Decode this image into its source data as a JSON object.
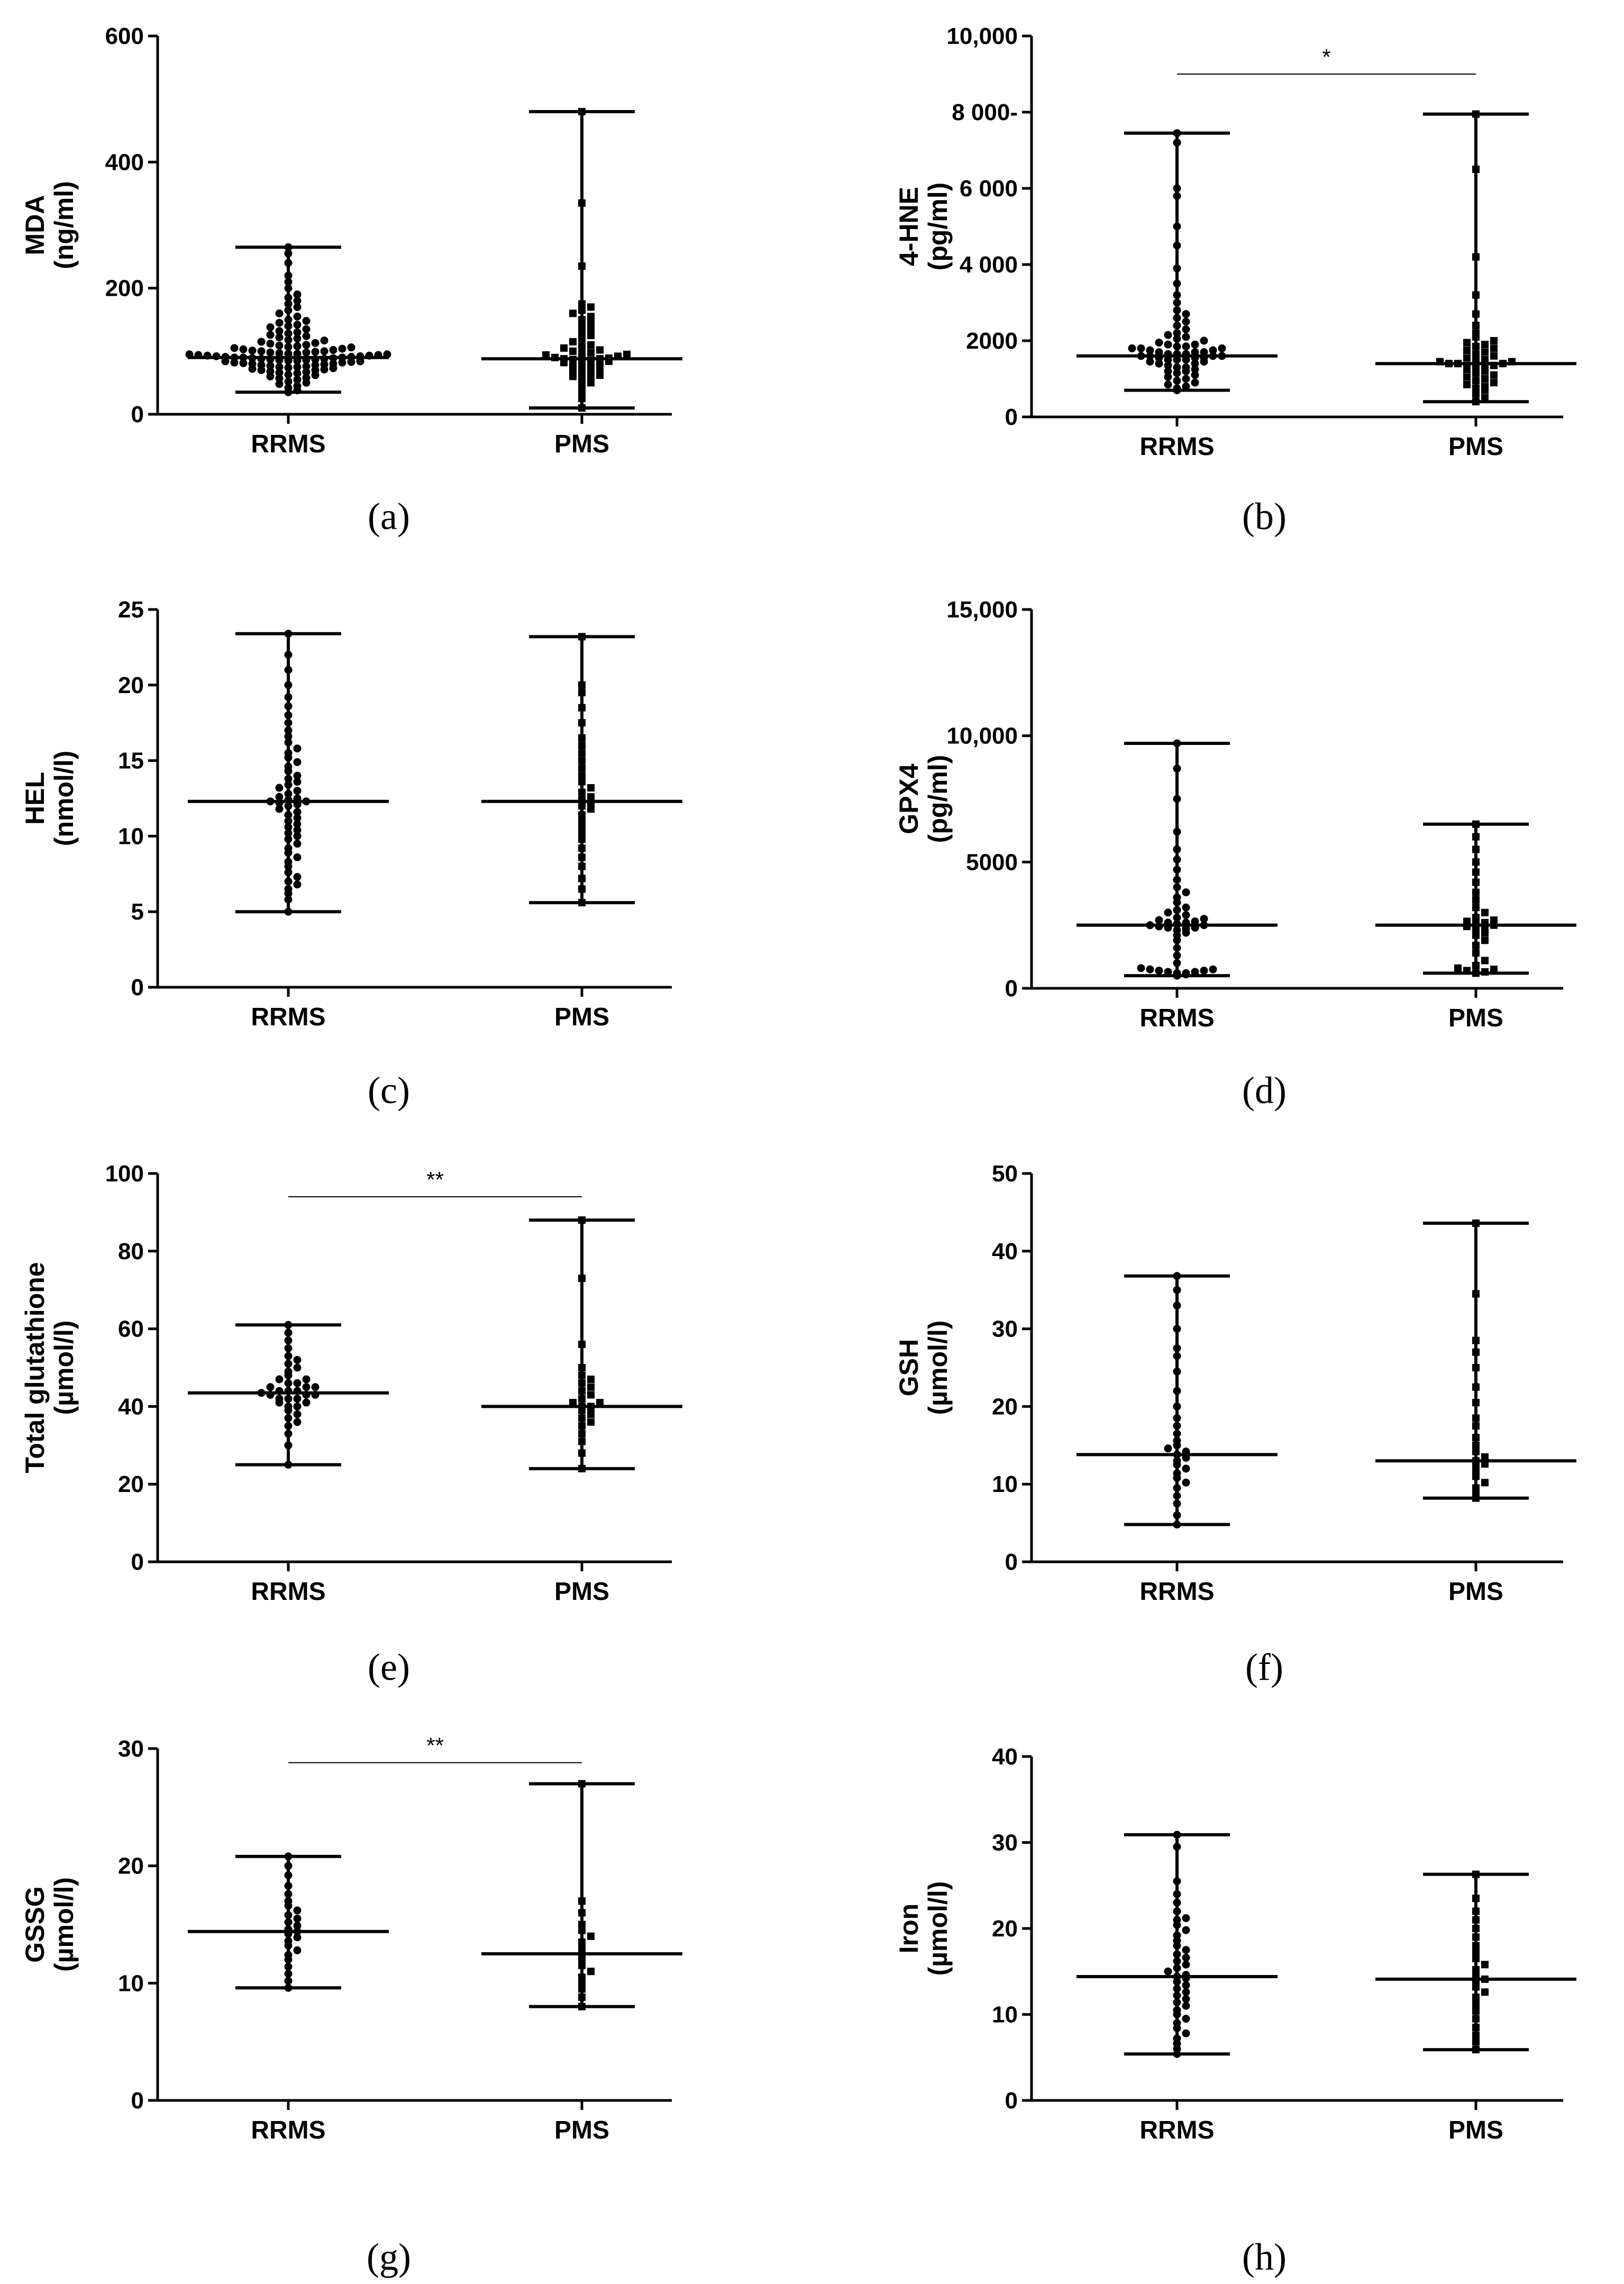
{
  "figure": {
    "ink_color": "#000000",
    "background": "#ffffff"
  },
  "chart_data": [
    {
      "id": "a",
      "type": "scatter",
      "subtype": "dot-plot with median and range",
      "panel_label": "(a)",
      "title": "",
      "ylabel_line1": "MDA",
      "ylabel_line2": "(ng/ml)",
      "ylim": [
        0,
        600
      ],
      "yticks": [
        0,
        200,
        400,
        600
      ],
      "ytick_labels": [
        "0",
        "200",
        "400",
        "600"
      ],
      "categories": [
        "RRMS",
        "PMS"
      ],
      "series": [
        {
          "name": "RRMS",
          "marker": "circle",
          "median": 90,
          "min": 35,
          "max": 265,
          "values": [
            35,
            38,
            42,
            45,
            48,
            50,
            52,
            55,
            57,
            58,
            60,
            62,
            63,
            65,
            66,
            67,
            68,
            70,
            70,
            71,
            72,
            73,
            74,
            75,
            75,
            76,
            77,
            78,
            78,
            79,
            80,
            80,
            81,
            82,
            82,
            83,
            84,
            84,
            85,
            85,
            86,
            86,
            87,
            87,
            88,
            88,
            89,
            89,
            90,
            90,
            90,
            91,
            91,
            92,
            92,
            93,
            93,
            94,
            94,
            95,
            95,
            96,
            96,
            97,
            98,
            98,
            99,
            100,
            100,
            101,
            102,
            103,
            104,
            105,
            106,
            107,
            108,
            109,
            110,
            112,
            113,
            115,
            117,
            118,
            120,
            122,
            124,
            126,
            128,
            130,
            132,
            135,
            138,
            140,
            142,
            145,
            148,
            150,
            155,
            160,
            165,
            170,
            175,
            180,
            185,
            190,
            200,
            210,
            220,
            240,
            255,
            265
          ]
        },
        {
          "name": "PMS",
          "marker": "square",
          "median": 88,
          "min": 10,
          "max": 480,
          "values": [
            10,
            25,
            35,
            45,
            50,
            55,
            58,
            60,
            62,
            65,
            68,
            70,
            72,
            75,
            77,
            78,
            80,
            82,
            84,
            85,
            86,
            87,
            88,
            88,
            89,
            90,
            92,
            94,
            95,
            96,
            98,
            100,
            102,
            105,
            108,
            110,
            115,
            120,
            125,
            130,
            135,
            140,
            145,
            150,
            155,
            160,
            165,
            170,
            175,
            235,
            335,
            480
          ]
        }
      ],
      "significance": null
    },
    {
      "id": "b",
      "type": "scatter",
      "subtype": "dot-plot with median and range",
      "panel_label": "(b)",
      "title": "",
      "ylabel_line1": "4-HNE",
      "ylabel_line2": "(pg/ml)",
      "ylim": [
        0,
        10000
      ],
      "yticks": [
        0,
        2000,
        4000,
        6000,
        8000,
        10000
      ],
      "ytick_labels": [
        "0",
        "2000",
        "4 000",
        "6 000",
        "8 000-",
        "10,000"
      ],
      "categories": [
        "RRMS",
        "PMS"
      ],
      "series": [
        {
          "name": "RRMS",
          "marker": "circle",
          "median": 1600,
          "min": 700,
          "max": 7450,
          "values": [
            700,
            750,
            800,
            850,
            900,
            950,
            1000,
            1050,
            1100,
            1150,
            1200,
            1200,
            1250,
            1300,
            1300,
            1350,
            1400,
            1400,
            1450,
            1450,
            1500,
            1500,
            1500,
            1550,
            1550,
            1550,
            1600,
            1600,
            1600,
            1600,
            1650,
            1650,
            1650,
            1700,
            1700,
            1700,
            1750,
            1750,
            1800,
            1800,
            1800,
            1850,
            1850,
            1900,
            1900,
            1950,
            2000,
            2050,
            2100,
            2150,
            2200,
            2300,
            2400,
            2500,
            2600,
            2700,
            2800,
            3000,
            3200,
            3500,
            3900,
            4500,
            5000,
            5800,
            6000,
            7200,
            7450
          ]
        },
        {
          "name": "PMS",
          "marker": "square",
          "median": 1400,
          "min": 400,
          "max": 7950,
          "values": [
            400,
            500,
            600,
            700,
            750,
            800,
            850,
            900,
            950,
            1000,
            1050,
            1100,
            1150,
            1200,
            1250,
            1300,
            1300,
            1350,
            1350,
            1400,
            1400,
            1400,
            1450,
            1450,
            1500,
            1500,
            1550,
            1600,
            1650,
            1700,
            1750,
            1800,
            1850,
            1900,
            1950,
            2000,
            2100,
            2200,
            2400,
            2700,
            3200,
            4200,
            6500,
            7950
          ]
        }
      ],
      "significance": {
        "label": "*",
        "from": "RRMS",
        "to": "PMS",
        "y": 9000
      }
    },
    {
      "id": "c",
      "type": "scatter",
      "subtype": "dot-plot with median and range",
      "panel_label": "(c)",
      "title": "",
      "ylabel_line1": "HEL",
      "ylabel_line2": "(nmol/l)",
      "ylim": [
        0,
        25
      ],
      "yticks": [
        0,
        5,
        10,
        15,
        20,
        25
      ],
      "ytick_labels": [
        "0",
        "5",
        "10",
        "15",
        "20",
        "25"
      ],
      "categories": [
        "RRMS",
        "PMS"
      ],
      "series": [
        {
          "name": "RRMS",
          "marker": "circle",
          "median": 12.3,
          "min": 5.0,
          "max": 23.4,
          "values": [
            5.0,
            5.8,
            6.2,
            6.5,
            6.8,
            7.0,
            7.3,
            7.6,
            8.0,
            8.3,
            8.6,
            8.9,
            9.2,
            9.5,
            9.8,
            10.0,
            10.2,
            10.4,
            10.6,
            10.8,
            11.0,
            11.2,
            11.4,
            11.6,
            11.8,
            12.0,
            12.1,
            12.2,
            12.3,
            12.3,
            12.4,
            12.5,
            12.6,
            12.8,
            13.0,
            13.2,
            13.4,
            13.6,
            13.8,
            14.0,
            14.3,
            14.6,
            14.9,
            15.2,
            15.5,
            15.8,
            16.2,
            16.6,
            17.0,
            17.5,
            18.0,
            18.6,
            19.2,
            20.0,
            21.0,
            22.0,
            23.4
          ]
        },
        {
          "name": "PMS",
          "marker": "square",
          "median": 12.3,
          "min": 5.6,
          "max": 23.2,
          "values": [
            5.6,
            6.5,
            7.2,
            8.0,
            8.6,
            9.2,
            9.8,
            10.2,
            10.6,
            11.0,
            11.4,
            11.8,
            12.0,
            12.2,
            12.4,
            12.6,
            12.9,
            13.2,
            13.6,
            14.0,
            14.5,
            15.0,
            15.5,
            16.0,
            16.5,
            17.5,
            18.5,
            19.5,
            20.0,
            23.2
          ]
        }
      ],
      "significance": null
    },
    {
      "id": "d",
      "type": "scatter",
      "subtype": "dot-plot with median and range",
      "panel_label": "(d)",
      "title": "",
      "ylabel_line1": "GPX4",
      "ylabel_line2": "(pg/ml)",
      "ylim": [
        0,
        15000
      ],
      "yticks": [
        0,
        5000,
        10000,
        15000
      ],
      "ytick_labels": [
        "0",
        "5000",
        "10,000",
        "15,000"
      ],
      "categories": [
        "RRMS",
        "PMS"
      ],
      "series": [
        {
          "name": "RRMS",
          "marker": "circle",
          "median": 2500,
          "min": 500,
          "max": 9700,
          "values": [
            500,
            550,
            600,
            600,
            650,
            650,
            700,
            700,
            750,
            750,
            800,
            1000,
            1300,
            1600,
            1900,
            2100,
            2200,
            2300,
            2350,
            2400,
            2400,
            2450,
            2500,
            2500,
            2550,
            2600,
            2600,
            2650,
            2700,
            2750,
            2800,
            2900,
            3000,
            3100,
            3200,
            3400,
            3600,
            3800,
            4000,
            4300,
            4700,
            5100,
            5500,
            6200,
            7500,
            8700,
            9700
          ]
        },
        {
          "name": "PMS",
          "marker": "square",
          "median": 2500,
          "min": 600,
          "max": 6500,
          "values": [
            600,
            650,
            700,
            750,
            800,
            900,
            1100,
            1400,
            1700,
            1900,
            2100,
            2200,
            2300,
            2400,
            2450,
            2500,
            2550,
            2600,
            2650,
            2700,
            2800,
            3000,
            3200,
            3500,
            3800,
            4200,
            4600,
            5000,
            5500,
            6000,
            6500
          ]
        }
      ],
      "significance": null
    },
    {
      "id": "e",
      "type": "scatter",
      "subtype": "dot-plot with median and range",
      "panel_label": "(e)",
      "title": "",
      "ylabel_line1": "Total glutathione",
      "ylabel_line2": "(µmol/l)",
      "ylim": [
        0,
        100
      ],
      "yticks": [
        0,
        20,
        40,
        60,
        80,
        100
      ],
      "ytick_labels": [
        "0",
        "20",
        "40",
        "60",
        "80",
        "100"
      ],
      "categories": [
        "RRMS",
        "PMS"
      ],
      "series": [
        {
          "name": "RRMS",
          "marker": "circle",
          "median": 43.5,
          "min": 25,
          "max": 61,
          "values": [
            25,
            30,
            33,
            35,
            36,
            37,
            38,
            39,
            40,
            40,
            41,
            41,
            42,
            42,
            42,
            43,
            43,
            43,
            43.5,
            44,
            44,
            44,
            45,
            45,
            45,
            46,
            46,
            47,
            47,
            48,
            49,
            50,
            51,
            52,
            53,
            55,
            57,
            59,
            61
          ]
        },
        {
          "name": "PMS",
          "marker": "square",
          "median": 40,
          "min": 24,
          "max": 88,
          "values": [
            24,
            28,
            31,
            33,
            35,
            36,
            37,
            38,
            39,
            39,
            40,
            40,
            41,
            41,
            42,
            43,
            44,
            45,
            46,
            47,
            48,
            50,
            56,
            73,
            88
          ]
        }
      ],
      "significance": {
        "label": "**",
        "from": "RRMS",
        "to": "PMS",
        "y": 94
      }
    },
    {
      "id": "f",
      "type": "scatter",
      "subtype": "dot-plot with median and range",
      "panel_label": "(f)",
      "title": "",
      "ylabel_line1": "GSH",
      "ylabel_line2": "(µmol/l)",
      "ylim": [
        0,
        50
      ],
      "yticks": [
        0,
        10,
        20,
        30,
        40,
        50
      ],
      "ytick_labels": [
        "0",
        "10",
        "20",
        "30",
        "40",
        "50"
      ],
      "categories": [
        "RRMS",
        "PMS"
      ],
      "series": [
        {
          "name": "RRMS",
          "marker": "circle",
          "median": 13.8,
          "min": 4.8,
          "max": 36.8,
          "values": [
            4.8,
            6.0,
            7.5,
            8.5,
            9.5,
            10.2,
            10.8,
            11.4,
            12.0,
            12.5,
            13.0,
            13.4,
            13.8,
            14.2,
            14.6,
            15.0,
            15.6,
            16.5,
            17.5,
            18.5,
            20.0,
            22.0,
            24.5,
            26.5,
            27.5,
            30.0,
            33.0,
            35.0,
            36.8
          ]
        },
        {
          "name": "PMS",
          "marker": "square",
          "median": 13.0,
          "min": 8.2,
          "max": 43.6,
          "values": [
            8.2,
            8.8,
            9.5,
            10.2,
            11.0,
            11.6,
            12.2,
            12.6,
            13.0,
            13.5,
            14.2,
            15.0,
            16.0,
            17.5,
            18.5,
            20.5,
            22.5,
            25.0,
            27.0,
            28.5,
            34.5,
            43.6
          ]
        }
      ],
      "significance": null
    },
    {
      "id": "g",
      "type": "scatter",
      "subtype": "dot-plot with median and range",
      "panel_label": "(g)",
      "title": "",
      "ylabel_line1": "GSSG",
      "ylabel_line2": "(µmol/l)",
      "ylim": [
        0,
        30
      ],
      "yticks": [
        0,
        10,
        20,
        30
      ],
      "ytick_labels": [
        "0",
        "10",
        "20",
        "30"
      ],
      "categories": [
        "RRMS",
        "PMS"
      ],
      "series": [
        {
          "name": "RRMS",
          "marker": "circle",
          "median": 14.4,
          "min": 9.6,
          "max": 20.8,
          "values": [
            9.6,
            10.2,
            10.8,
            11.4,
            12.0,
            12.4,
            12.8,
            13.2,
            13.6,
            13.9,
            14.2,
            14.4,
            14.6,
            14.9,
            15.2,
            15.5,
            15.8,
            16.2,
            16.6,
            17.0,
            17.6,
            18.3,
            19.2,
            20.0,
            20.8
          ]
        },
        {
          "name": "PMS",
          "marker": "square",
          "median": 12.5,
          "min": 8.0,
          "max": 27.0,
          "values": [
            8.0,
            8.8,
            9.5,
            10.0,
            10.5,
            11.0,
            11.5,
            12.0,
            12.5,
            13.0,
            13.5,
            14.0,
            14.5,
            15.0,
            16.0,
            17.0,
            27.0
          ]
        }
      ],
      "significance": {
        "label": "**",
        "from": "RRMS",
        "to": "PMS",
        "y": 28.8
      }
    },
    {
      "id": "h",
      "type": "scatter",
      "subtype": "dot-plot with median and range",
      "panel_label": "(h)",
      "title": "",
      "ylabel_line1": "Iron",
      "ylabel_line2": "(µmol/l)",
      "ylim": [
        0,
        40
      ],
      "yticks": [
        0,
        10,
        20,
        30,
        40
      ],
      "ytick_labels": [
        "0",
        "10",
        "20",
        "30",
        "40"
      ],
      "categories": [
        "RRMS",
        "PMS"
      ],
      "series": [
        {
          "name": "RRMS",
          "marker": "circle",
          "median": 14.4,
          "min": 5.4,
          "max": 30.9,
          "values": [
            5.4,
            6.0,
            6.6,
            7.2,
            7.8,
            8.4,
            9.0,
            9.5,
            10.0,
            10.5,
            11.0,
            11.4,
            11.8,
            12.2,
            12.6,
            13.0,
            13.4,
            13.8,
            14.2,
            14.4,
            14.6,
            15.0,
            15.4,
            15.8,
            16.2,
            16.6,
            17.0,
            17.5,
            18.0,
            18.6,
            19.2,
            19.8,
            20.4,
            21.0,
            21.2,
            22.0,
            23.0,
            24.0,
            25.5,
            29.5,
            30.9
          ]
        },
        {
          "name": "PMS",
          "marker": "square",
          "median": 14.1,
          "min": 5.9,
          "max": 26.3,
          "values": [
            5.9,
            6.8,
            7.6,
            8.5,
            9.5,
            10.4,
            11.2,
            12.0,
            12.6,
            13.2,
            13.8,
            14.1,
            14.6,
            15.2,
            15.8,
            16.5,
            17.2,
            18.0,
            19.0,
            20.0,
            21.0,
            22.0,
            23.5,
            26.3
          ]
        }
      ],
      "significance": null
    }
  ]
}
